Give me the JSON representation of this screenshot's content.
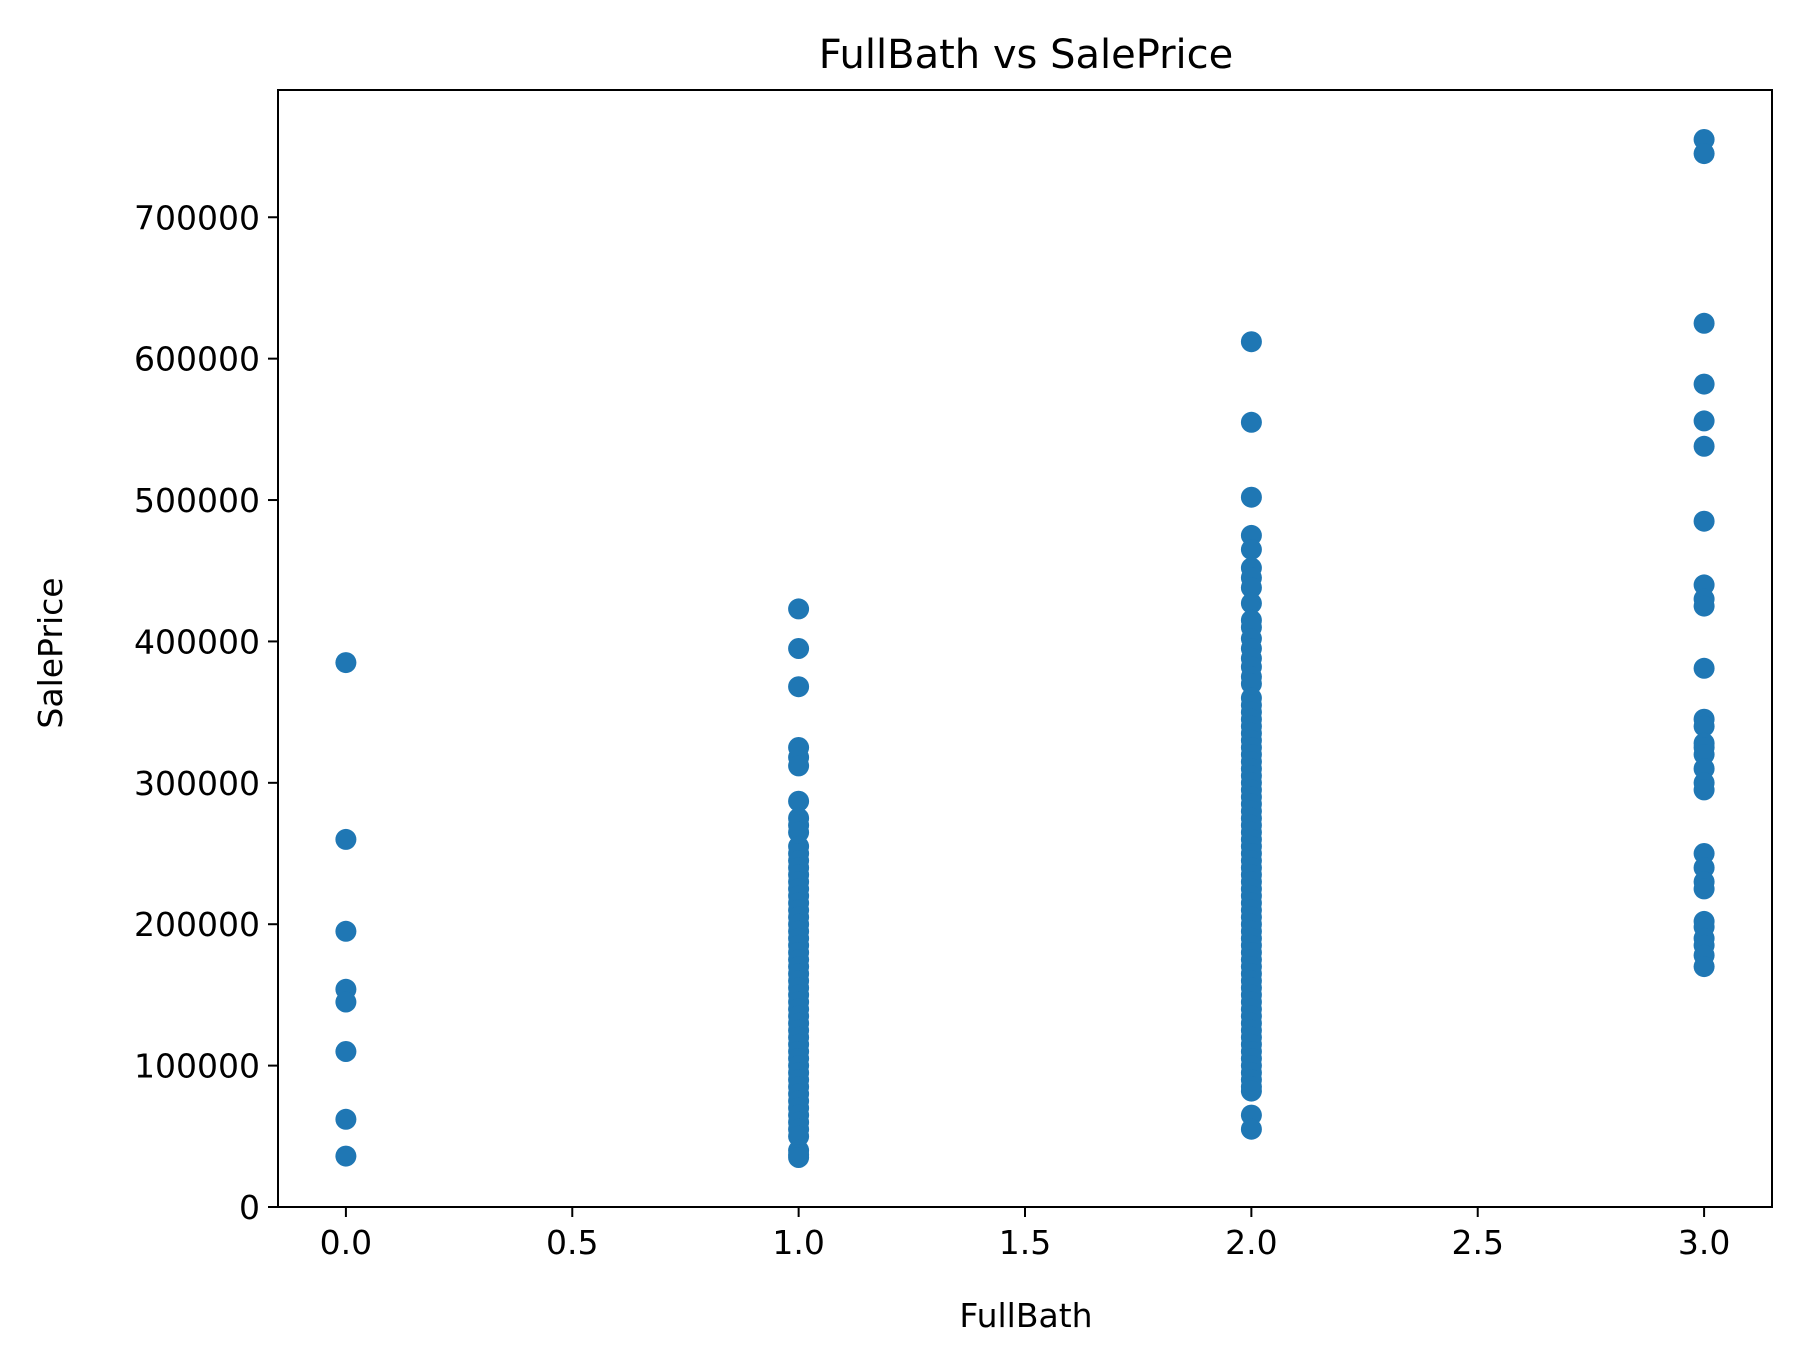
{
  "chart_data": {
    "type": "scatter",
    "title": "FullBath vs SalePrice",
    "xlabel": "FullBath",
    "ylabel": "SalePrice",
    "xlim": [
      -0.15,
      3.15
    ],
    "ylim": [
      0,
      790000
    ],
    "grid": false,
    "legend": "none",
    "x_ticks": [
      0.0,
      0.5,
      1.0,
      1.5,
      2.0,
      2.5,
      3.0
    ],
    "x_tick_labels": [
      "0.0",
      "0.5",
      "1.0",
      "1.5",
      "2.0",
      "2.5",
      "3.0"
    ],
    "y_ticks": [
      0,
      100000,
      200000,
      300000,
      400000,
      500000,
      600000,
      700000
    ],
    "y_tick_labels": [
      "0",
      "100000",
      "200000",
      "300000",
      "400000",
      "500000",
      "600000",
      "700000"
    ],
    "color": "#1f77b4",
    "points": [
      [
        0,
        385000
      ],
      [
        0,
        260000
      ],
      [
        0,
        195000
      ],
      [
        0,
        154000
      ],
      [
        0,
        145000
      ],
      [
        0,
        110000
      ],
      [
        0,
        62000
      ],
      [
        0,
        36000
      ],
      [
        1,
        423000
      ],
      [
        1,
        395000
      ],
      [
        1,
        368000
      ],
      [
        1,
        325000
      ],
      [
        1,
        318000
      ],
      [
        1,
        312000
      ],
      [
        1,
        287000
      ],
      [
        1,
        275000
      ],
      [
        1,
        270000
      ],
      [
        1,
        265000
      ],
      [
        1,
        255000
      ],
      [
        1,
        250000
      ],
      [
        1,
        245000
      ],
      [
        1,
        240000
      ],
      [
        1,
        235000
      ],
      [
        1,
        230000
      ],
      [
        1,
        225000
      ],
      [
        1,
        220000
      ],
      [
        1,
        215000
      ],
      [
        1,
        210000
      ],
      [
        1,
        205000
      ],
      [
        1,
        200000
      ],
      [
        1,
        195000
      ],
      [
        1,
        190000
      ],
      [
        1,
        185000
      ],
      [
        1,
        180000
      ],
      [
        1,
        175000
      ],
      [
        1,
        170000
      ],
      [
        1,
        165000
      ],
      [
        1,
        160000
      ],
      [
        1,
        155000
      ],
      [
        1,
        150000
      ],
      [
        1,
        145000
      ],
      [
        1,
        140000
      ],
      [
        1,
        135000
      ],
      [
        1,
        130000
      ],
      [
        1,
        125000
      ],
      [
        1,
        120000
      ],
      [
        1,
        115000
      ],
      [
        1,
        110000
      ],
      [
        1,
        105000
      ],
      [
        1,
        100000
      ],
      [
        1,
        95000
      ],
      [
        1,
        90000
      ],
      [
        1,
        85000
      ],
      [
        1,
        80000
      ],
      [
        1,
        75000
      ],
      [
        1,
        70000
      ],
      [
        1,
        65000
      ],
      [
        1,
        60000
      ],
      [
        1,
        55000
      ],
      [
        1,
        50000
      ],
      [
        1,
        40000
      ],
      [
        1,
        37000
      ],
      [
        1,
        35000
      ],
      [
        2,
        612000
      ],
      [
        2,
        555000
      ],
      [
        2,
        502000
      ],
      [
        2,
        475000
      ],
      [
        2,
        465000
      ],
      [
        2,
        452000
      ],
      [
        2,
        445000
      ],
      [
        2,
        438000
      ],
      [
        2,
        427000
      ],
      [
        2,
        415000
      ],
      [
        2,
        410000
      ],
      [
        2,
        402000
      ],
      [
        2,
        395000
      ],
      [
        2,
        388000
      ],
      [
        2,
        382000
      ],
      [
        2,
        375000
      ],
      [
        2,
        370000
      ],
      [
        2,
        360000
      ],
      [
        2,
        355000
      ],
      [
        2,
        350000
      ],
      [
        2,
        345000
      ],
      [
        2,
        340000
      ],
      [
        2,
        335000
      ],
      [
        2,
        330000
      ],
      [
        2,
        325000
      ],
      [
        2,
        320000
      ],
      [
        2,
        315000
      ],
      [
        2,
        310000
      ],
      [
        2,
        305000
      ],
      [
        2,
        300000
      ],
      [
        2,
        295000
      ],
      [
        2,
        290000
      ],
      [
        2,
        285000
      ],
      [
        2,
        280000
      ],
      [
        2,
        275000
      ],
      [
        2,
        270000
      ],
      [
        2,
        265000
      ],
      [
        2,
        260000
      ],
      [
        2,
        255000
      ],
      [
        2,
        250000
      ],
      [
        2,
        245000
      ],
      [
        2,
        240000
      ],
      [
        2,
        235000
      ],
      [
        2,
        230000
      ],
      [
        2,
        225000
      ],
      [
        2,
        220000
      ],
      [
        2,
        215000
      ],
      [
        2,
        210000
      ],
      [
        2,
        205000
      ],
      [
        2,
        200000
      ],
      [
        2,
        195000
      ],
      [
        2,
        190000
      ],
      [
        2,
        185000
      ],
      [
        2,
        180000
      ],
      [
        2,
        175000
      ],
      [
        2,
        170000
      ],
      [
        2,
        165000
      ],
      [
        2,
        160000
      ],
      [
        2,
        155000
      ],
      [
        2,
        150000
      ],
      [
        2,
        145000
      ],
      [
        2,
        140000
      ],
      [
        2,
        135000
      ],
      [
        2,
        130000
      ],
      [
        2,
        125000
      ],
      [
        2,
        120000
      ],
      [
        2,
        115000
      ],
      [
        2,
        110000
      ],
      [
        2,
        105000
      ],
      [
        2,
        100000
      ],
      [
        2,
        95000
      ],
      [
        2,
        90000
      ],
      [
        2,
        85000
      ],
      [
        2,
        82000
      ],
      [
        2,
        65000
      ],
      [
        2,
        55000
      ],
      [
        3,
        755000
      ],
      [
        3,
        745000
      ],
      [
        3,
        625000
      ],
      [
        3,
        582000
      ],
      [
        3,
        556000
      ],
      [
        3,
        538000
      ],
      [
        3,
        485000
      ],
      [
        3,
        440000
      ],
      [
        3,
        430000
      ],
      [
        3,
        425000
      ],
      [
        3,
        381000
      ],
      [
        3,
        345000
      ],
      [
        3,
        340000
      ],
      [
        3,
        328000
      ],
      [
        3,
        325000
      ],
      [
        3,
        320000
      ],
      [
        3,
        310000
      ],
      [
        3,
        300000
      ],
      [
        3,
        295000
      ],
      [
        3,
        250000
      ],
      [
        3,
        240000
      ],
      [
        3,
        230000
      ],
      [
        3,
        225000
      ],
      [
        3,
        202000
      ],
      [
        3,
        198000
      ],
      [
        3,
        190000
      ],
      [
        3,
        185000
      ],
      [
        3,
        178000
      ],
      [
        3,
        170000
      ]
    ]
  }
}
